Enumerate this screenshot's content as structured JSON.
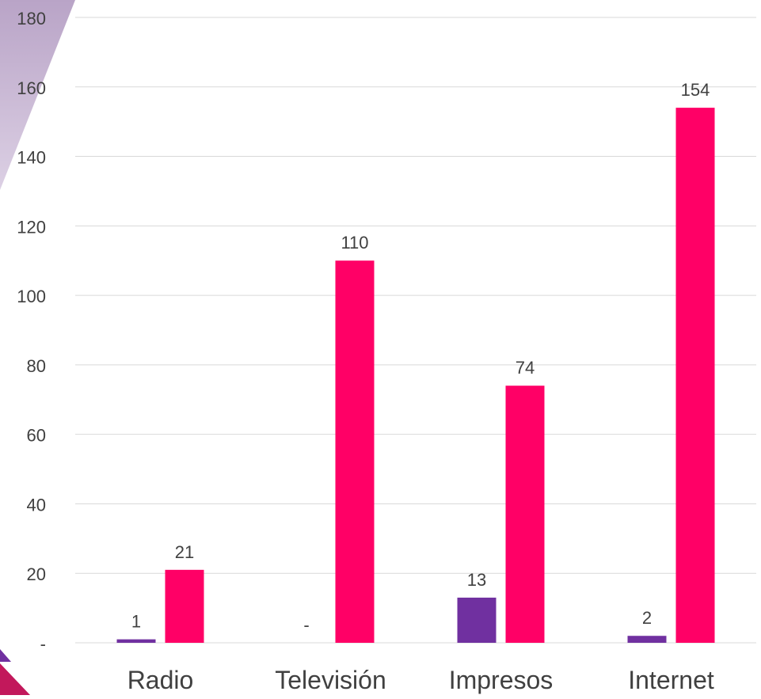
{
  "chart_data": {
    "type": "bar",
    "title": "",
    "xlabel": "",
    "ylabel": "",
    "categories": [
      "Radio",
      "Televisión",
      "Impresos",
      "Internet"
    ],
    "series": [
      {
        "color": "#7030a0",
        "values": [
          1,
          0,
          13,
          2
        ],
        "labels": [
          "1",
          "-",
          "13",
          "2"
        ]
      },
      {
        "color": "#ff0066",
        "values": [
          21,
          110,
          74,
          154
        ],
        "labels": [
          "21",
          "110",
          "74",
          "154"
        ]
      }
    ],
    "ylim": [
      0,
      180
    ],
    "y_ticks": [
      "-",
      "20",
      "40",
      "60",
      "80",
      "100",
      "120",
      "140",
      "160",
      "180"
    ],
    "grid": true,
    "legend": "none"
  }
}
